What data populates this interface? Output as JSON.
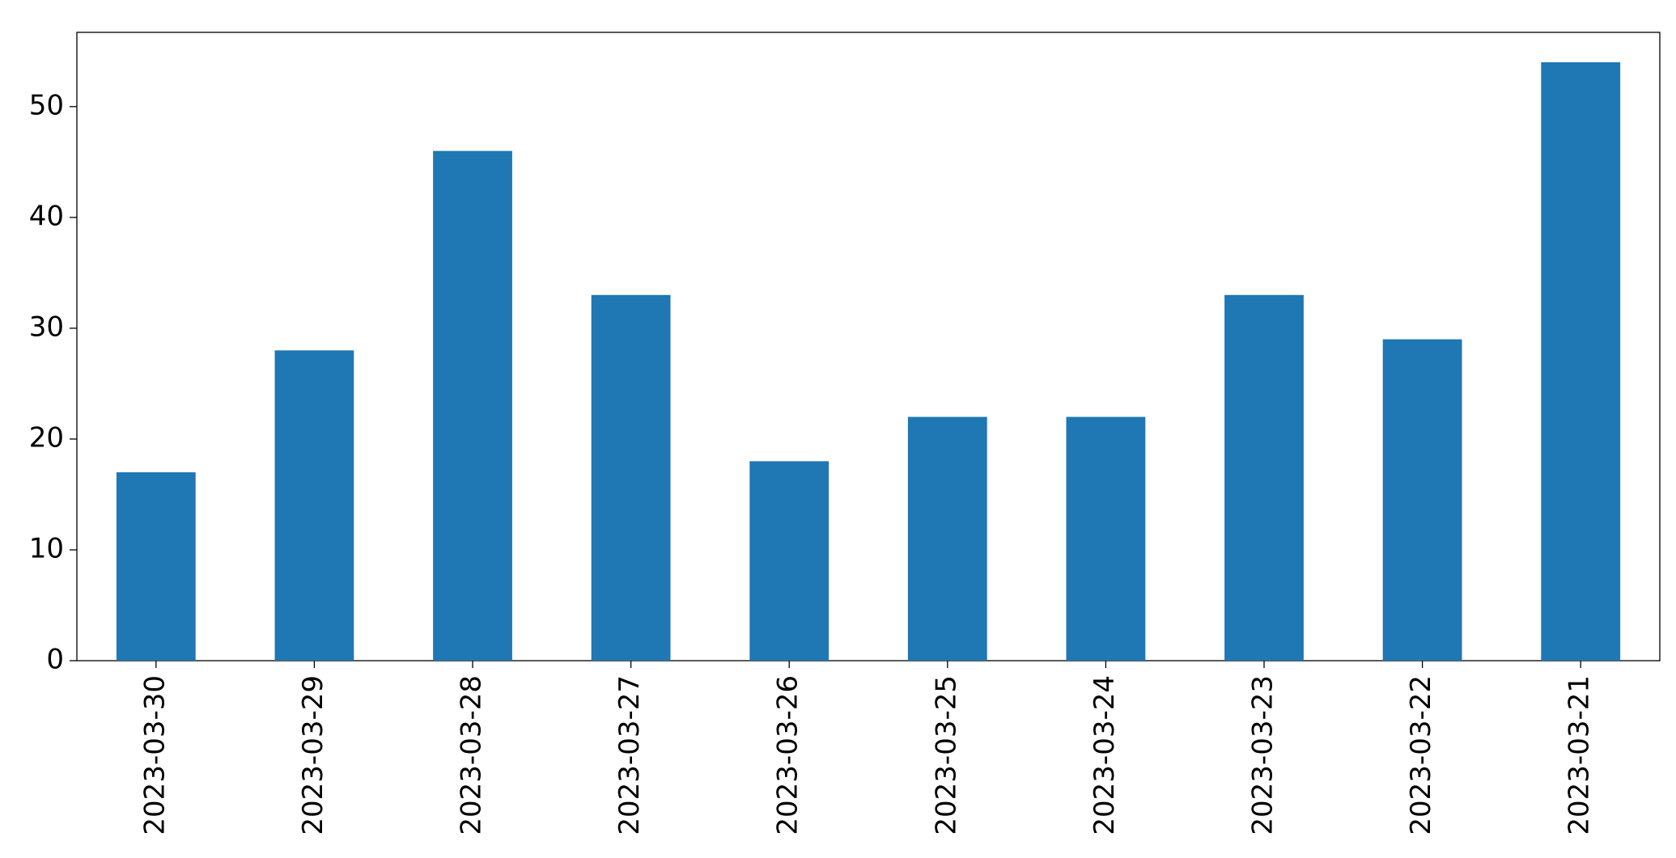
{
  "chart_data": {
    "type": "bar",
    "categories": [
      "2023-03-30",
      "2023-03-29",
      "2023-03-28",
      "2023-03-27",
      "2023-03-26",
      "2023-03-25",
      "2023-03-24",
      "2023-03-23",
      "2023-03-22",
      "2023-03-21"
    ],
    "values": [
      17,
      28,
      46,
      33,
      18,
      22,
      22,
      33,
      29,
      54
    ],
    "color": "#1f77b4",
    "ylim": [
      0,
      56.7
    ],
    "yticks": [
      0,
      10,
      20,
      30,
      40,
      50
    ],
    "grid": false
  }
}
